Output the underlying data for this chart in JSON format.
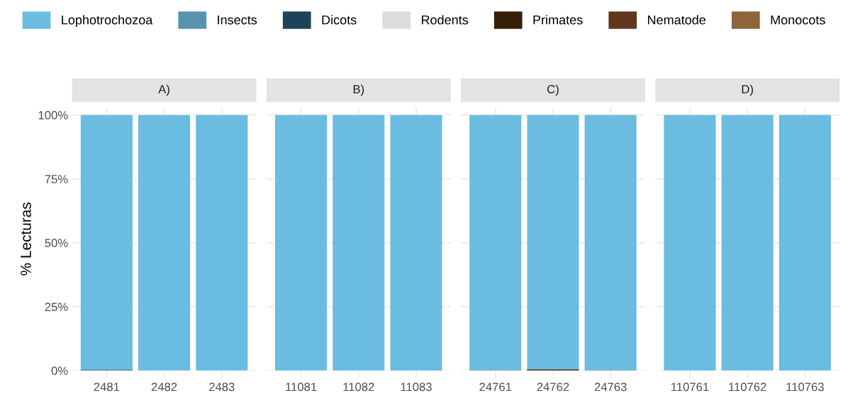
{
  "chart_data": [
    {
      "type": "bar",
      "title": "A)",
      "ylabel": "% Lecturas",
      "categories": [
        "2481",
        "2482",
        "2483"
      ],
      "stacked": true,
      "ylim": [
        0,
        103
      ],
      "yticks": [
        {
          "value": 0,
          "label": "0%"
        },
        {
          "value": 25,
          "label": "25%"
        },
        {
          "value": 50,
          "label": "50%"
        },
        {
          "value": 75,
          "label": "75%"
        },
        {
          "value": 100,
          "label": "100%"
        }
      ],
      "grid": true,
      "legend": "top",
      "series": [
        {
          "name": "Monocots",
          "color": "#8f643b",
          "values": [
            0,
            0,
            0
          ]
        },
        {
          "name": "Nematode",
          "color": "#62361b",
          "values": [
            0,
            0,
            0
          ]
        },
        {
          "name": "Primates",
          "color": "#361f0a",
          "values": [
            0,
            0,
            0
          ]
        },
        {
          "name": "Rodents",
          "color": "#dcdcdc",
          "values": [
            0,
            0,
            0
          ]
        },
        {
          "name": "Dicots",
          "color": "#1b4458",
          "values": [
            0.3,
            0,
            0
          ]
        },
        {
          "name": "Insects",
          "color": "#5893b0",
          "values": [
            0,
            null,
            null
          ]
        },
        {
          "name": "Lophotrochozoa",
          "color": "#6abce0",
          "values": [
            99.7,
            100,
            100
          ]
        }
      ]
    },
    {
      "type": "bar",
      "title": "B)",
      "categories": [
        "11081",
        "11082",
        "11083"
      ],
      "stacked": true,
      "ylim": [
        0,
        103
      ],
      "yticks": [
        0,
        25,
        50,
        75,
        100
      ],
      "grid": true,
      "tick_labels": "x",
      "series": [
        {
          "color": "#8f643b",
          "values": [
            0,
            0,
            0
          ]
        },
        {
          "color": "#62361b",
          "values": [
            0,
            0,
            0
          ]
        },
        {
          "color": "#361f0a",
          "values": [
            0,
            0,
            0
          ]
        },
        {
          "color": "#dcdcdc",
          "values": [
            0,
            0,
            0
          ]
        },
        {
          "color": "#1b4458",
          "values": [
            0,
            0,
            0
          ]
        },
        {
          "color": "#5893b0",
          "values": [
            0,
            null,
            0
          ]
        },
        {
          "color": "#6abce0",
          "values": [
            100,
            100,
            100
          ]
        }
      ]
    },
    {
      "type": "bar",
      "title": "C)",
      "categories": [
        "24761",
        "24762",
        "24763"
      ],
      "stacked": true,
      "ylim": [
        0,
        103
      ],
      "yticks": [
        0,
        25,
        50,
        75,
        100
      ],
      "grid": true,
      "tick_labels": "x",
      "series": [
        {
          "color": "#8f643b",
          "values": [
            0,
            0,
            0
          ]
        },
        {
          "color": "#62361b",
          "values": [
            0,
            0,
            0
          ]
        },
        {
          "color": "#361f0a",
          "values": [
            0,
            0.5,
            0
          ]
        },
        {
          "color": "#dcdcdc",
          "values": [
            0,
            0,
            0
          ]
        },
        {
          "color": "#1b4458",
          "values": [
            0,
            0,
            0
          ]
        },
        {
          "color": "#5893b0",
          "values": [
            0.3,
            0,
            0.3
          ]
        },
        {
          "color": "#6abce0",
          "values": [
            99.7,
            99.5,
            99.7
          ]
        }
      ]
    },
    {
      "type": "bar",
      "title": "D)",
      "categories": [
        "110761",
        "110762",
        "110763"
      ],
      "stacked": true,
      "ylim": [
        0,
        103
      ],
      "yticks": [
        0,
        25,
        50,
        75,
        100
      ],
      "grid": true,
      "tick_labels": "x",
      "series": [
        {
          "color": "#8f643b",
          "values": [
            0,
            0,
            0
          ]
        },
        {
          "color": "#62361b",
          "values": [
            0,
            0,
            0
          ]
        },
        {
          "color": "#361f0a",
          "values": [
            0,
            0,
            0
          ]
        },
        {
          "color": "#dcdcdc",
          "values": [
            0,
            0,
            0
          ]
        },
        {
          "color": "#1b4458",
          "values": [
            0,
            0,
            0
          ]
        },
        {
          "color": "#5893b0",
          "values": [
            0,
            0,
            0
          ]
        },
        {
          "color": "#6abce0",
          "values": [
            100,
            100,
            100
          ]
        }
      ]
    }
  ]
}
